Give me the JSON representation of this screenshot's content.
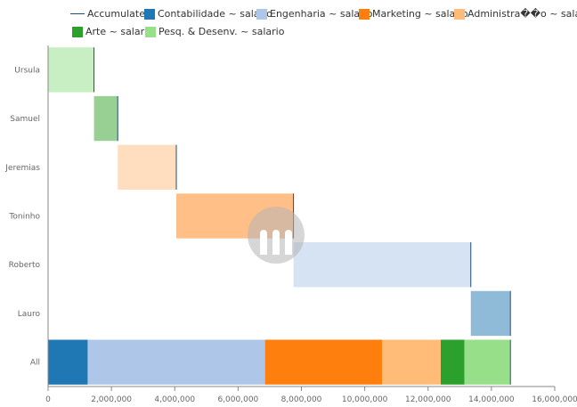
{
  "chart_data": {
    "type": "bar",
    "subtype": "waterfall-horizontal",
    "categories": [
      "Ursula",
      "Samuel",
      "Jeremias",
      "Toninho",
      "Roberto",
      "Lauro",
      "All"
    ],
    "series": [
      {
        "name": "Pesq. & Desenv. ~ salario",
        "color": "#98df8a",
        "stack_color": "#98df8a",
        "step_color": "#c7efc3",
        "step_category": "Ursula",
        "value": 1450000
      },
      {
        "name": "Arte ~ salario",
        "color": "#2ca02c",
        "step_color": "#98d094",
        "step_category": "Samuel",
        "value": 750000
      },
      {
        "name": "Administra��o ~ salario",
        "color": "#ffbb78",
        "step_color": "#ffdebf",
        "step_category": "Jeremias",
        "value": 1850000
      },
      {
        "name": "Marketing ~ salario",
        "color": "#ff7f0e",
        "step_color": "#ffbf87",
        "step_category": "Toninho",
        "value": 3700000
      },
      {
        "name": "Engenharia ~ salario",
        "color": "#aec7e8",
        "step_color": "#d6e3f3",
        "step_category": "Roberto",
        "value": 5600000
      },
      {
        "name": "Contabilidade ~ salario",
        "color": "#1f77b4",
        "step_color": "#8fbbd9",
        "step_category": "Lauro",
        "value": 1250000
      }
    ],
    "all_stack_order": [
      "Contabilidade ~ salario",
      "Engenharia ~ salario",
      "Marketing ~ salario",
      "Administra��o ~ salario",
      "Arte ~ salario",
      "Pesq. & Desenv. ~ salario"
    ],
    "accumulated": {
      "name": "Accumulated",
      "color": "#1f4e79"
    },
    "xlim": [
      0,
      16000000
    ],
    "xticks": [
      0,
      2000000,
      4000000,
      6000000,
      8000000,
      10000000,
      12000000,
      14000000,
      16000000
    ],
    "xtick_labels": [
      "0",
      "2,000,000",
      "4,000,000",
      "6,000,000",
      "8,000,000",
      "10,000,000",
      "12,000,000",
      "14,000,000",
      "16,000,000"
    ],
    "legend_position": "top",
    "grid": false
  },
  "legend": {
    "accumulated": "Accumulated",
    "contabilidade": "Contabilidade ~ salario",
    "engenharia": "Engenharia ~ salario",
    "marketing": "Marketing ~ salario",
    "administracao": "Administra��o ~ salario",
    "arte": "Arte ~ salario",
    "pesq": "Pesq. & Desenv. ~ salario"
  }
}
